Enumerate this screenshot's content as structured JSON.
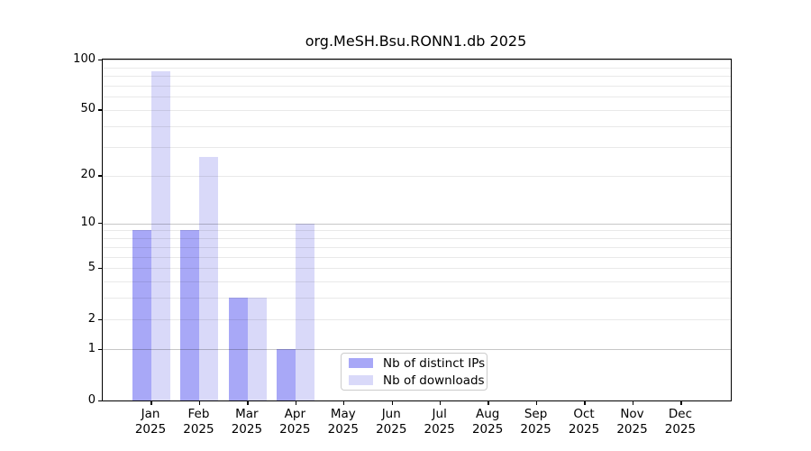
{
  "title": "org.MeSH.Bsu.RONN1.db 2025",
  "chart_data": {
    "type": "bar",
    "title": "org.MeSH.Bsu.RONN1.db 2025",
    "categories": [
      "Jan 2025",
      "Feb 2025",
      "Mar 2025",
      "Apr 2025",
      "May 2025",
      "Jun 2025",
      "Jul 2025",
      "Aug 2025",
      "Sep 2025",
      "Oct 2025",
      "Nov 2025",
      "Dec 2025"
    ],
    "series": [
      {
        "name": "Nb of distinct IPs",
        "color": "#a8a8f7",
        "values": [
          9,
          9,
          3,
          1,
          0,
          0,
          0,
          0,
          0,
          0,
          0,
          0
        ]
      },
      {
        "name": "Nb of downloads",
        "color": "#d9d9f9",
        "values": [
          85,
          26,
          3,
          10,
          0,
          0,
          0,
          0,
          0,
          0,
          0,
          0
        ]
      }
    ],
    "yscale": "log1p",
    "ylim": [
      0,
      100
    ],
    "yticks": [
      0,
      1,
      2,
      5,
      10,
      20,
      50,
      100
    ],
    "ytick_labels": [
      "0",
      "1",
      "2",
      "5",
      "10",
      "20",
      "50",
      "100"
    ],
    "grid_major_values": [
      1,
      10,
      100
    ],
    "grid_minor_values": [
      2,
      3,
      4,
      5,
      6,
      7,
      8,
      9,
      20,
      30,
      40,
      50,
      60,
      70,
      80,
      90
    ],
    "grid": "on",
    "legend_position": "lower center"
  },
  "colors": {
    "distinct_ips_bar": "#a8a8f7",
    "downloads_bar": "#d9d9f9",
    "axis": "#000000",
    "legend_border": "#cccccc"
  }
}
